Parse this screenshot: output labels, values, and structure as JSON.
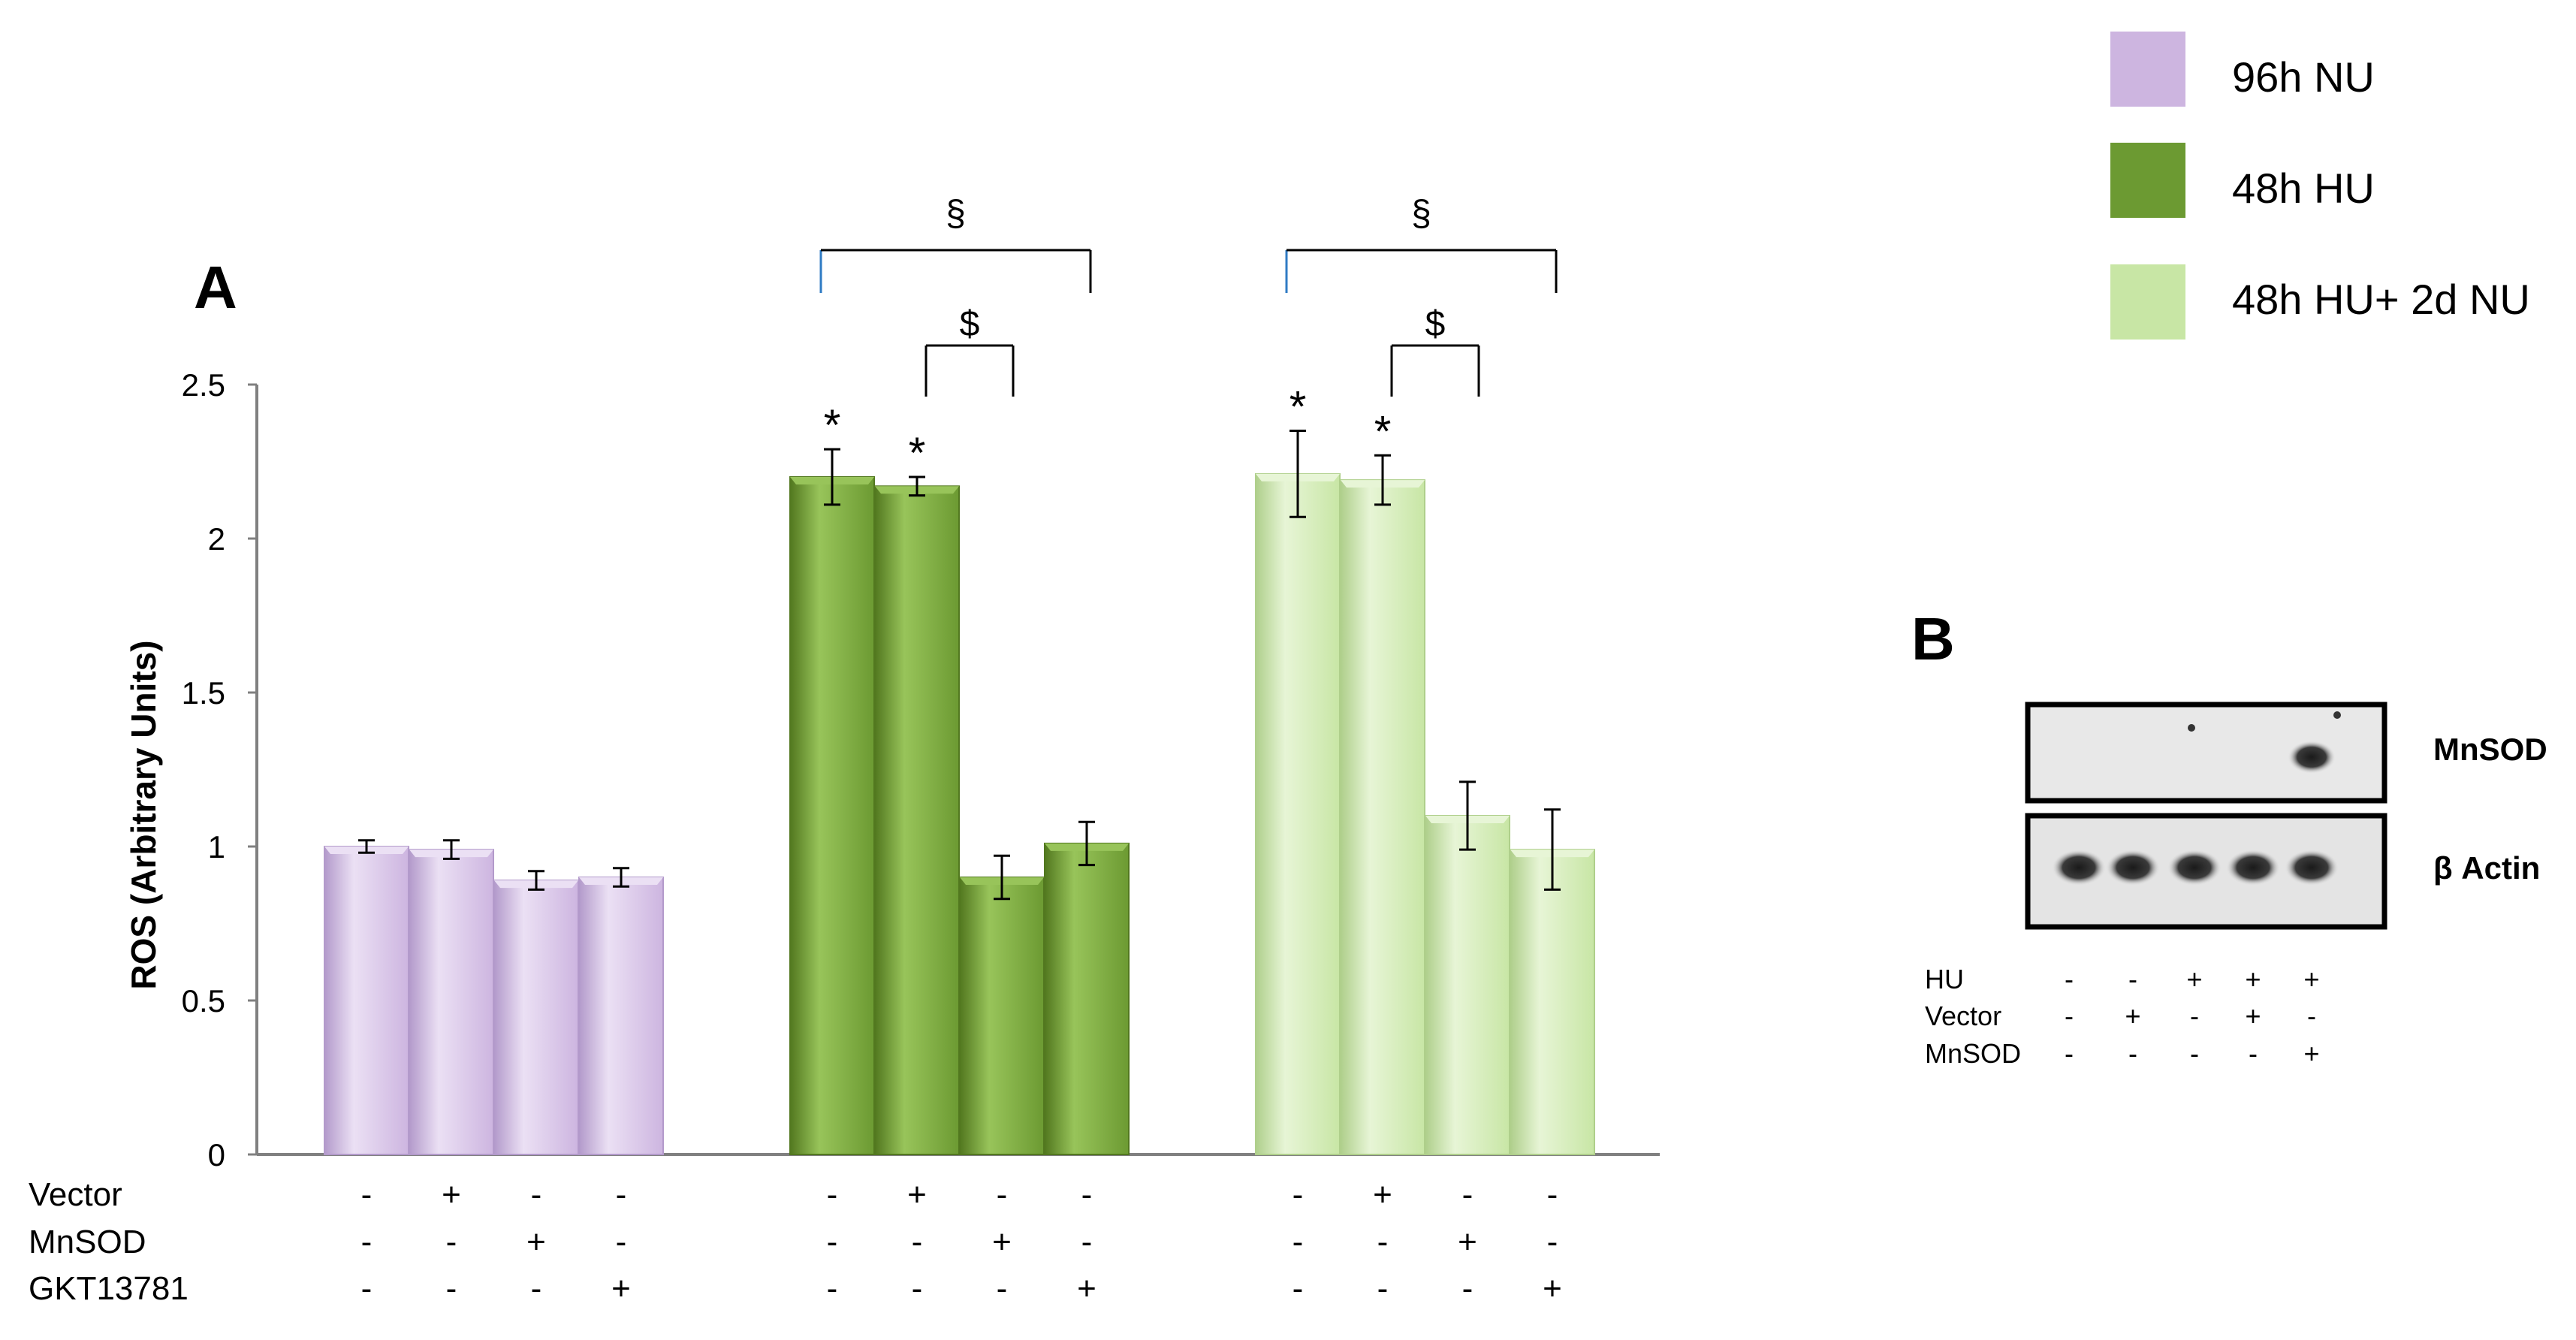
{
  "colors": {
    "nu": "#CDB5E0",
    "nu_light": "#EBE0F4",
    "nu_edge": "#B39ACB",
    "hu": "#6C9A32",
    "hu_light": "#98C45A",
    "hu_edge": "#52781F",
    "hu2": "#C8E6A5",
    "hu2_light": "#E7F5D6",
    "hu2_edge": "#AFCF8B",
    "axis": "#808080",
    "bracket_blue": "#2F7BC4"
  },
  "panel_a": {
    "label": "A"
  },
  "panel_b": {
    "label": "B"
  },
  "chart_data": {
    "type": "bar",
    "ylabel": "ROS (Arbitrary Units)",
    "ylim": [
      0,
      2.5
    ],
    "yticks": [
      "0",
      "0.5",
      "1",
      "1.5",
      "2",
      "2.5"
    ],
    "ytick_values": [
      0,
      0.5,
      1,
      1.5,
      2,
      2.5
    ],
    "legend": [
      {
        "name": "96h NU",
        "color": "#CDB5E0"
      },
      {
        "name": "48h HU",
        "color": "#6C9A32"
      },
      {
        "name": "48h HU+ 2d NU",
        "color": "#C8E6A5"
      }
    ],
    "series": [
      {
        "name": "96h NU",
        "values": [
          1.0,
          0.99,
          0.89,
          0.9
        ],
        "errors": [
          0.02,
          0.03,
          0.03,
          0.03
        ],
        "stars": [
          "",
          "",
          "",
          ""
        ]
      },
      {
        "name": "48h HU",
        "values": [
          2.2,
          2.17,
          0.9,
          1.01
        ],
        "errors": [
          0.09,
          0.03,
          0.07,
          0.07
        ],
        "stars": [
          "*",
          "*",
          "",
          ""
        ]
      },
      {
        "name": "48h HU+ 2d NU",
        "values": [
          2.21,
          2.19,
          1.1,
          0.99
        ],
        "errors": [
          0.14,
          0.08,
          0.11,
          0.13
        ],
        "stars": [
          "*",
          "*",
          "",
          ""
        ]
      }
    ],
    "condition_rows": [
      {
        "label": "Vector",
        "signs": [
          "-",
          "+",
          "-",
          "-"
        ]
      },
      {
        "label": "MnSOD",
        "signs": [
          "-",
          "-",
          "+",
          "-"
        ]
      },
      {
        "label": "GKT13781",
        "signs": [
          "-",
          "-",
          "-",
          "+"
        ]
      }
    ],
    "significance": [
      {
        "group": 1,
        "from": 0,
        "to": 3,
        "symbol": "§"
      },
      {
        "group": 1,
        "from": 1,
        "to": 2,
        "symbol": "$"
      },
      {
        "group": 2,
        "from": 0,
        "to": 3,
        "symbol": "§"
      },
      {
        "group": 2,
        "from": 1,
        "to": 2,
        "symbol": "$"
      }
    ]
  },
  "blot": {
    "bands": [
      "MnSOD",
      "β Actin"
    ],
    "conditions": [
      {
        "label": "HU",
        "signs": [
          "-",
          "-",
          "+",
          "+",
          "+"
        ]
      },
      {
        "label": "Vector",
        "signs": [
          "-",
          "+",
          "-",
          "+",
          "-"
        ]
      },
      {
        "label": "MnSOD",
        "signs": [
          "-",
          "-",
          "-",
          "-",
          "+"
        ]
      }
    ]
  }
}
